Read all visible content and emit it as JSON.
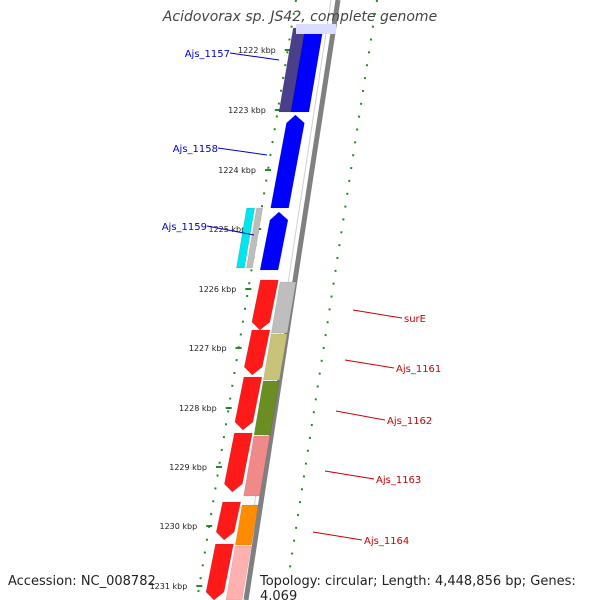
{
  "map": {
    "title": "Acidovorax sp. JS42, complete genome",
    "accession": "Accession: NC_008782",
    "topology": "Topology: circular; Length: 4,448,856 bp; Genes: 4,069",
    "ticks": [
      {
        "label": "1222 kbp"
      },
      {
        "label": "1223 kbp"
      },
      {
        "label": "1224 kbp"
      },
      {
        "label": "1225 kbp"
      },
      {
        "label": "1226 kbp"
      },
      {
        "label": "1227 kbp"
      },
      {
        "label": "1228 kbp"
      },
      {
        "label": "1229 kbp"
      },
      {
        "label": "1230 kbp"
      },
      {
        "label": "1231 kbp"
      }
    ],
    "reverse_labels": [
      "Ajs_1157",
      "Ajs_1158",
      "Ajs_1159"
    ],
    "forward_labels": [
      "surE",
      "Ajs_1161",
      "Ajs_1162",
      "Ajs_1163",
      "Ajs_1164"
    ],
    "colors": {
      "forward_gene": "#ff0000",
      "reverse_gene": "#0000ff",
      "label_forward": "#cc0000",
      "label_reverse": "#0000cc",
      "ring_dots": "#228b22",
      "backbone": "#808080"
    }
  }
}
